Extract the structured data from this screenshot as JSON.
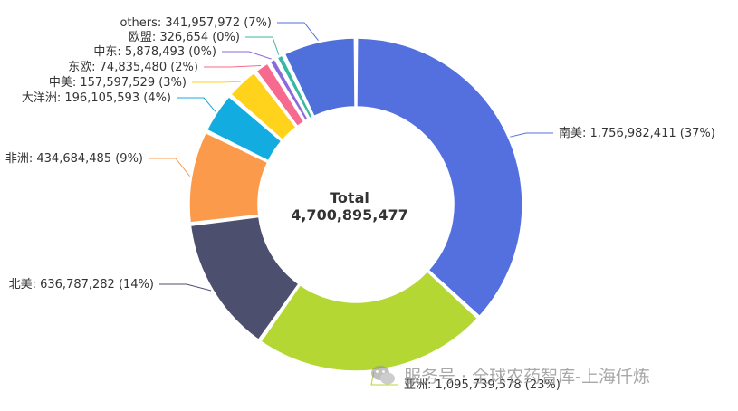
{
  "chart_data": {
    "type": "pie",
    "donut": true,
    "center": {
      "title": "Total",
      "value": "4,700,895,477"
    },
    "slices": [
      {
        "name": "南美",
        "value": 1756982411,
        "value_label": "1,756,982,411",
        "percent": "37%",
        "color": "#5470de"
      },
      {
        "name": "亚洲",
        "value": 1095739578,
        "value_label": "1,095,739,578",
        "percent": "23%",
        "color": "#b5d734"
      },
      {
        "name": "北美",
        "value": 636787282,
        "value_label": "636,787,282",
        "percent": "14%",
        "color": "#4d4f6f"
      },
      {
        "name": "非洲",
        "value": 434684485,
        "value_label": "434,684,485",
        "percent": "9%",
        "color": "#fb9a4b"
      },
      {
        "name": "大洋洲",
        "value": 196105593,
        "value_label": "196,105,593",
        "percent": "4%",
        "color": "#12ace0"
      },
      {
        "name": "中美",
        "value": 157597529,
        "value_label": "157,597,529",
        "percent": "3%",
        "color": "#ffd21c"
      },
      {
        "name": "东欧",
        "value": 74835480,
        "value_label": "74,835,480",
        "percent": "2%",
        "color": "#f56a8e"
      },
      {
        "name": "中东",
        "value": 5878493,
        "value_label": "5,878,493",
        "percent": "0%",
        "color": "#8c6ad9"
      },
      {
        "name": "欧盟",
        "value": 326654,
        "value_label": "326,654",
        "percent": "0%",
        "color": "#38b8a0"
      },
      {
        "name": "others",
        "value": 341957972,
        "value_label": "341,957,972",
        "percent": "7%",
        "color": "#4f6fdb"
      }
    ]
  },
  "watermark": {
    "text": "服务号 · 全球农药智库-上海仟炼"
  }
}
